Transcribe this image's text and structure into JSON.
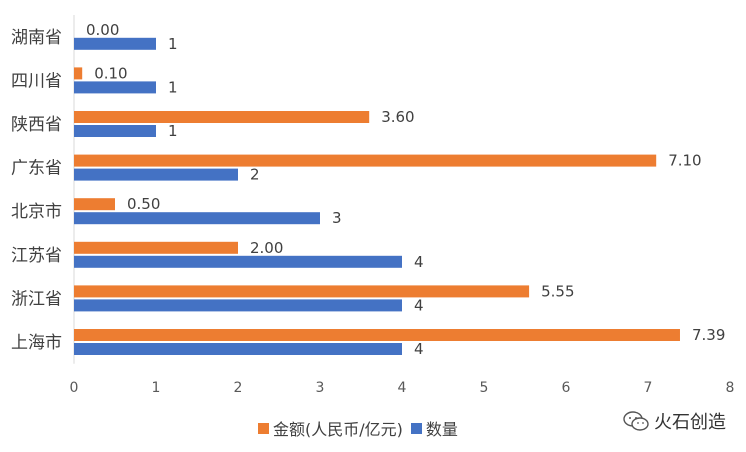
{
  "chart_data": {
    "type": "bar",
    "orientation": "horizontal",
    "categories": [
      "湖南省",
      "四川省",
      "陕西省",
      "广东省",
      "北京市",
      "江苏省",
      "浙江省",
      "上海市"
    ],
    "series": [
      {
        "name": "金额(人民币/亿元)",
        "color": "#ED7D31",
        "values": [
          0.0,
          0.1,
          3.6,
          7.1,
          0.5,
          2.0,
          5.55,
          7.39
        ],
        "labels": [
          "0.00",
          "0.10",
          "3.60",
          "7.10",
          "0.50",
          "2.00",
          "5.55",
          "7.39"
        ]
      },
      {
        "name": "数量",
        "color": "#4472C4",
        "values": [
          1,
          1,
          1,
          2,
          3,
          4,
          4,
          4
        ],
        "labels": [
          "1",
          "1",
          "1",
          "2",
          "3",
          "4",
          "4",
          "4"
        ]
      }
    ],
    "xlim": [
      0,
      8
    ],
    "xticks": [
      "0",
      "1",
      "2",
      "3",
      "4",
      "5",
      "6",
      "7",
      "8"
    ],
    "grid": false,
    "legend_position": "bottom"
  },
  "watermark": {
    "text": "火石创造",
    "icon": "wechat-icon"
  }
}
